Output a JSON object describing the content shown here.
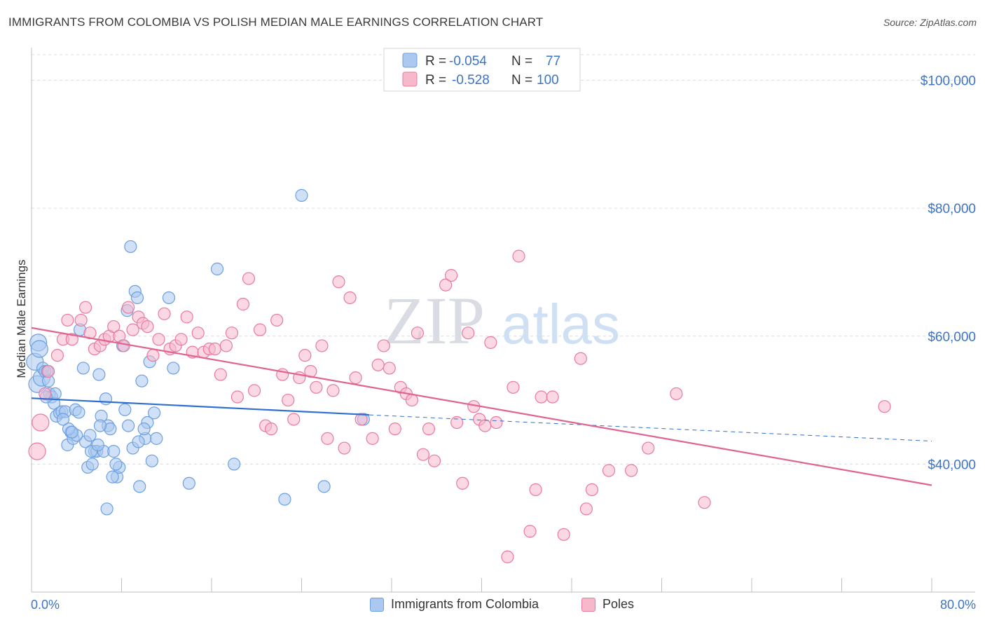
{
  "title": "IMMIGRANTS FROM COLOMBIA VS POLISH MEDIAN MALE EARNINGS CORRELATION CHART",
  "source": "Source: ZipAtlas.com",
  "watermark": {
    "zip": "ZIP",
    "atlas": "atlas"
  },
  "colors": {
    "blue": "#6d9fe0",
    "blue_fill": "#aac8f0",
    "blue_line": "#2f6fcf",
    "pink": "#e87aa0",
    "pink_fill": "#f7b8cc",
    "pink_line": "#e0648f",
    "accent_text": "#3d73c7"
  },
  "legend": {
    "series1": {
      "r_label": "R =",
      "r_value": "-0.054",
      "n_label": "N =",
      "n_value": "77"
    },
    "series2": {
      "r_label": "R =",
      "r_value": "-0.528",
      "n_label": "N =",
      "n_value": "100"
    }
  },
  "bottom_legend": [
    "Immigrants from Colombia",
    "Poles"
  ],
  "chart_data": {
    "type": "scatter",
    "ylabel": "Median Male Earnings",
    "xlim": [
      0,
      80
    ],
    "ylim": [
      20000,
      104000
    ],
    "x_tick_labels": [
      "0.0%",
      "80.0%"
    ],
    "y_ticks": [
      {
        "value": 40000,
        "label": "$40,000"
      },
      {
        "value": 60000,
        "label": "$60,000"
      },
      {
        "value": 80000,
        "label": "$80,000"
      },
      {
        "value": 100000,
        "label": "$100,000"
      }
    ],
    "grid": true,
    "series": [
      {
        "name": "Immigrants from Colombia",
        "trend": {
          "x0": 0,
          "y0": 50300,
          "x1": 30,
          "y1": 47700,
          "dash_to_x": 80,
          "dash_to_y": 43600
        },
        "points": [
          [
            0.3,
            56000
          ],
          [
            0.5,
            52500
          ],
          [
            0.6,
            59000
          ],
          [
            0.7,
            58000
          ],
          [
            0.9,
            53500
          ],
          [
            1.0,
            55000
          ],
          [
            1.2,
            54500
          ],
          [
            1.4,
            54500
          ],
          [
            1.5,
            53000
          ],
          [
            1.6,
            51000
          ],
          [
            1.8,
            50500
          ],
          [
            2.0,
            49500
          ],
          [
            2.2,
            47500
          ],
          [
            2.5,
            48000
          ],
          [
            2.7,
            48200
          ],
          [
            3.0,
            48200
          ],
          [
            3.2,
            43000
          ],
          [
            3.5,
            45000
          ],
          [
            3.7,
            44000
          ],
          [
            3.9,
            48500
          ],
          [
            4.2,
            48100
          ],
          [
            4.3,
            61000
          ],
          [
            4.6,
            55000
          ],
          [
            4.8,
            43500
          ],
          [
            5.0,
            39500
          ],
          [
            5.2,
            44500
          ],
          [
            5.4,
            40000
          ],
          [
            5.6,
            42000
          ],
          [
            5.8,
            42000
          ],
          [
            6.0,
            54000
          ],
          [
            6.2,
            47500
          ],
          [
            6.4,
            42000
          ],
          [
            6.6,
            50200
          ],
          [
            6.8,
            46000
          ],
          [
            7.0,
            45500
          ],
          [
            7.3,
            42000
          ],
          [
            7.6,
            38000
          ],
          [
            7.8,
            39500
          ],
          [
            8.1,
            58500
          ],
          [
            8.3,
            48500
          ],
          [
            8.6,
            46000
          ],
          [
            8.8,
            74000
          ],
          [
            9.2,
            67000
          ],
          [
            9.4,
            66000
          ],
          [
            9.6,
            36500
          ],
          [
            9.8,
            53000
          ],
          [
            10.1,
            44000
          ],
          [
            10.3,
            46500
          ],
          [
            10.5,
            56000
          ],
          [
            10.7,
            40500
          ],
          [
            10.9,
            48000
          ],
          [
            11.1,
            44000
          ],
          [
            6.7,
            33000
          ],
          [
            12.2,
            66000
          ],
          [
            12.6,
            55000
          ],
          [
            14.0,
            37000
          ],
          [
            16.5,
            70500
          ],
          [
            18.0,
            40000
          ],
          [
            22.5,
            34500
          ],
          [
            24.0,
            82000
          ],
          [
            26.0,
            36500
          ],
          [
            29.5,
            47000
          ],
          [
            7.5,
            40000
          ],
          [
            9.0,
            42500
          ],
          [
            5.3,
            42000
          ],
          [
            4.0,
            44500
          ],
          [
            3.3,
            45500
          ],
          [
            2.1,
            51000
          ],
          [
            1.3,
            50500
          ],
          [
            6.1,
            46000
          ],
          [
            8.5,
            64000
          ],
          [
            10.0,
            45500
          ],
          [
            7.2,
            38000
          ],
          [
            9.5,
            43500
          ],
          [
            3.6,
            45000
          ],
          [
            2.8,
            47000
          ],
          [
            5.9,
            43000
          ]
        ]
      },
      {
        "name": "Poles",
        "trend": {
          "x0": 0,
          "y0": 61300,
          "x1": 80,
          "y1": 36700
        },
        "points": [
          [
            0.5,
            42000
          ],
          [
            0.8,
            46500
          ],
          [
            1.2,
            51000
          ],
          [
            1.5,
            54500
          ],
          [
            2.3,
            57000
          ],
          [
            2.8,
            59500
          ],
          [
            3.2,
            62500
          ],
          [
            3.6,
            59500
          ],
          [
            4.4,
            62500
          ],
          [
            4.8,
            64500
          ],
          [
            5.2,
            60500
          ],
          [
            5.6,
            58000
          ],
          [
            6.1,
            58500
          ],
          [
            6.5,
            59500
          ],
          [
            6.9,
            60000
          ],
          [
            7.3,
            61500
          ],
          [
            7.8,
            60000
          ],
          [
            8.2,
            58500
          ],
          [
            8.6,
            64500
          ],
          [
            9.0,
            61000
          ],
          [
            9.5,
            63000
          ],
          [
            9.9,
            62000
          ],
          [
            10.3,
            61500
          ],
          [
            10.8,
            57000
          ],
          [
            11.3,
            59500
          ],
          [
            11.8,
            63500
          ],
          [
            12.3,
            58000
          ],
          [
            12.8,
            58500
          ],
          [
            13.3,
            59500
          ],
          [
            13.8,
            63000
          ],
          [
            14.3,
            57500
          ],
          [
            14.8,
            60500
          ],
          [
            15.3,
            57500
          ],
          [
            15.8,
            58000
          ],
          [
            16.3,
            58000
          ],
          [
            16.8,
            54000
          ],
          [
            17.3,
            58500
          ],
          [
            17.8,
            60500
          ],
          [
            18.3,
            50500
          ],
          [
            18.8,
            65000
          ],
          [
            19.3,
            69000
          ],
          [
            19.8,
            51500
          ],
          [
            20.3,
            61000
          ],
          [
            20.8,
            46000
          ],
          [
            21.3,
            45500
          ],
          [
            21.8,
            62500
          ],
          [
            22.3,
            54000
          ],
          [
            22.8,
            50000
          ],
          [
            23.3,
            47000
          ],
          [
            23.8,
            53500
          ],
          [
            24.3,
            57000
          ],
          [
            24.8,
            54500
          ],
          [
            25.3,
            52000
          ],
          [
            25.8,
            58500
          ],
          [
            26.3,
            44000
          ],
          [
            26.8,
            51500
          ],
          [
            27.3,
            68500
          ],
          [
            27.8,
            42500
          ],
          [
            28.3,
            66000
          ],
          [
            28.8,
            53500
          ],
          [
            29.3,
            47000
          ],
          [
            30.3,
            44000
          ],
          [
            30.8,
            55500
          ],
          [
            31.3,
            58500
          ],
          [
            31.8,
            55000
          ],
          [
            32.3,
            45500
          ],
          [
            32.8,
            52000
          ],
          [
            33.3,
            51000
          ],
          [
            33.8,
            50000
          ],
          [
            34.3,
            60500
          ],
          [
            34.8,
            41500
          ],
          [
            35.3,
            45500
          ],
          [
            35.8,
            40500
          ],
          [
            36.8,
            68000
          ],
          [
            37.3,
            69500
          ],
          [
            37.8,
            46500
          ],
          [
            38.3,
            37000
          ],
          [
            38.8,
            60500
          ],
          [
            39.3,
            49000
          ],
          [
            39.8,
            47000
          ],
          [
            40.3,
            46000
          ],
          [
            40.8,
            59000
          ],
          [
            41.3,
            46500
          ],
          [
            42.3,
            25500
          ],
          [
            42.8,
            52000
          ],
          [
            43.3,
            72500
          ],
          [
            44.3,
            29500
          ],
          [
            44.8,
            36000
          ],
          [
            45.3,
            50500
          ],
          [
            46.3,
            50500
          ],
          [
            47.3,
            29000
          ],
          [
            48.8,
            56500
          ],
          [
            49.3,
            33000
          ],
          [
            49.8,
            36000
          ],
          [
            51.3,
            39000
          ],
          [
            53.3,
            39000
          ],
          [
            54.8,
            42500
          ],
          [
            57.3,
            51000
          ],
          [
            59.8,
            34000
          ],
          [
            75.8,
            49000
          ]
        ]
      }
    ]
  }
}
